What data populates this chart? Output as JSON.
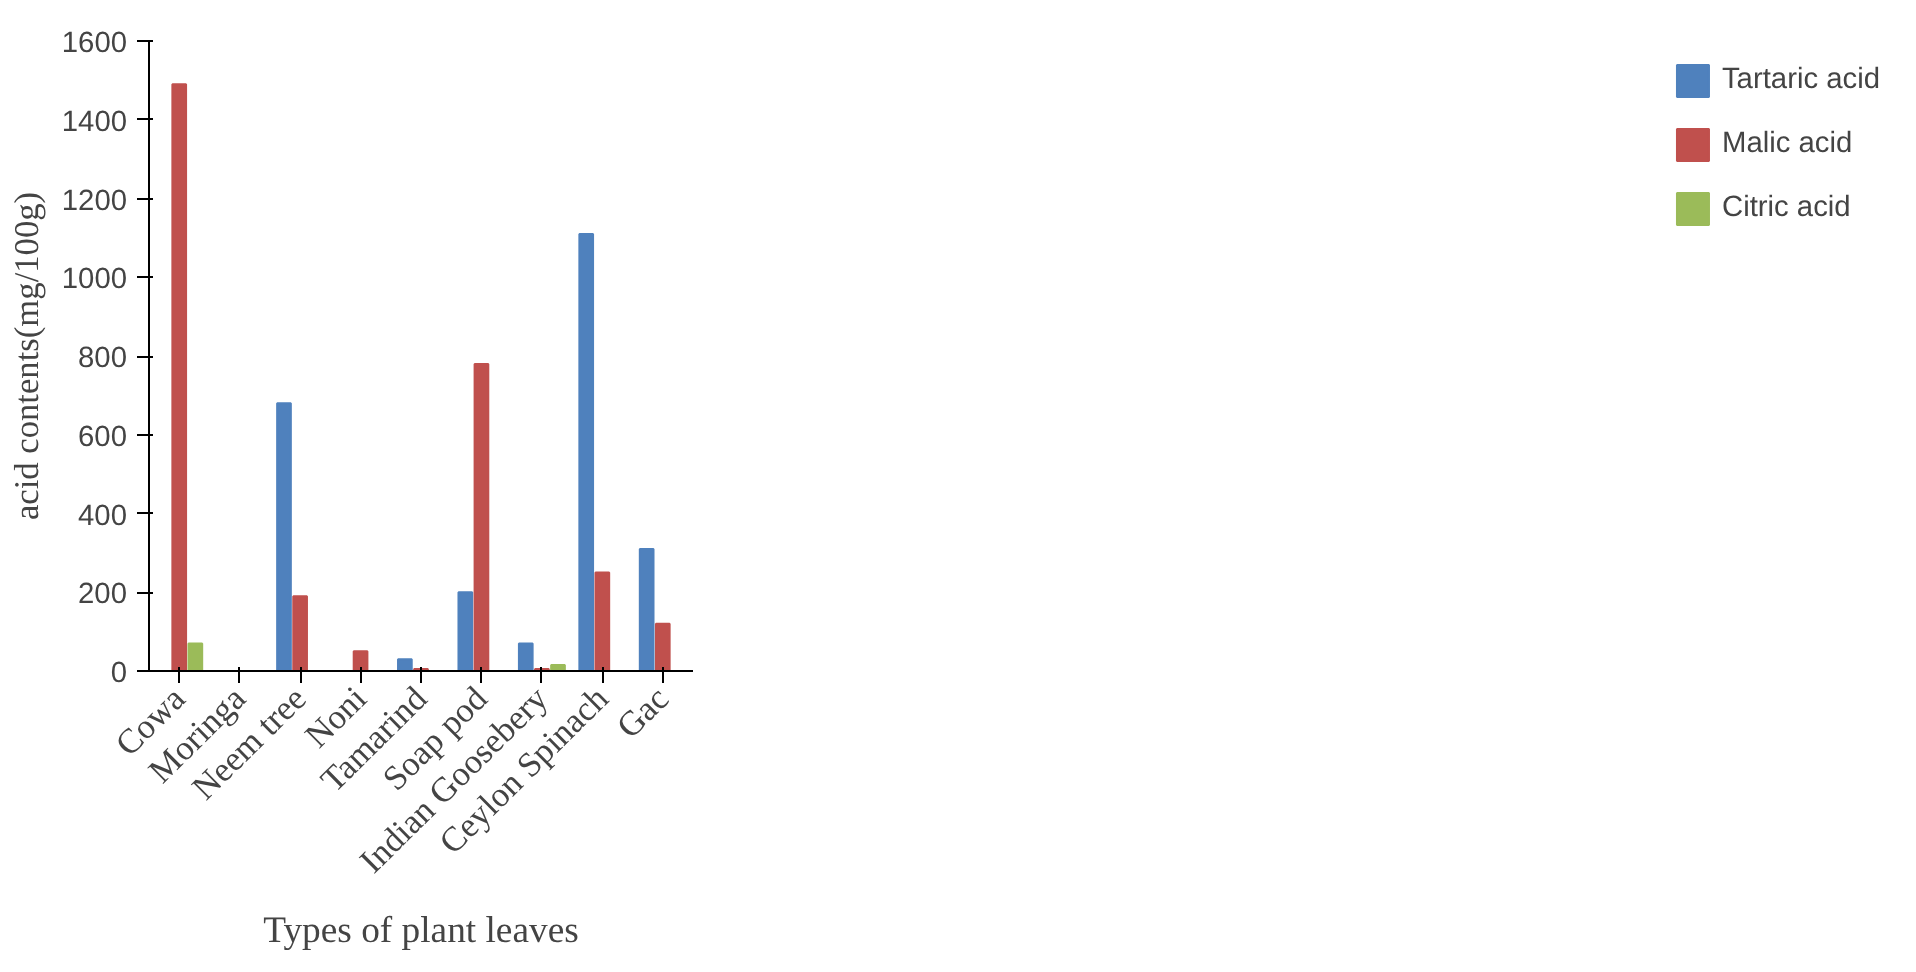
{
  "chart_data": {
    "type": "bar",
    "xlabel": "Types of plant leaves",
    "ylabel": "acid contents(mg/100g)",
    "categories": [
      "Cowa",
      "Moringa",
      "Neem tree",
      "Noni",
      "Tamarind",
      "Soap pod",
      "Indian Goosebery",
      "Ceylon Spinach",
      "Gac"
    ],
    "series": [
      {
        "name": "Tartaric acid",
        "color": "#4f81bd",
        "values": [
          0,
          0,
          680,
          0,
          30,
          200,
          70,
          1110,
          310
        ]
      },
      {
        "name": "Malic acid",
        "color": "#c0504d",
        "values": [
          1490,
          0,
          190,
          50,
          5,
          780,
          5,
          250,
          120
        ]
      },
      {
        "name": "Citric acid",
        "color": "#9bbb59",
        "values": [
          70,
          0,
          0,
          0,
          0,
          0,
          15,
          0,
          0
        ]
      }
    ],
    "ylim": [
      0,
      1600
    ],
    "yticks": [
      0,
      200,
      400,
      600,
      800,
      1000,
      1200,
      1400,
      1600
    ],
    "grid": false,
    "legend": "right"
  }
}
